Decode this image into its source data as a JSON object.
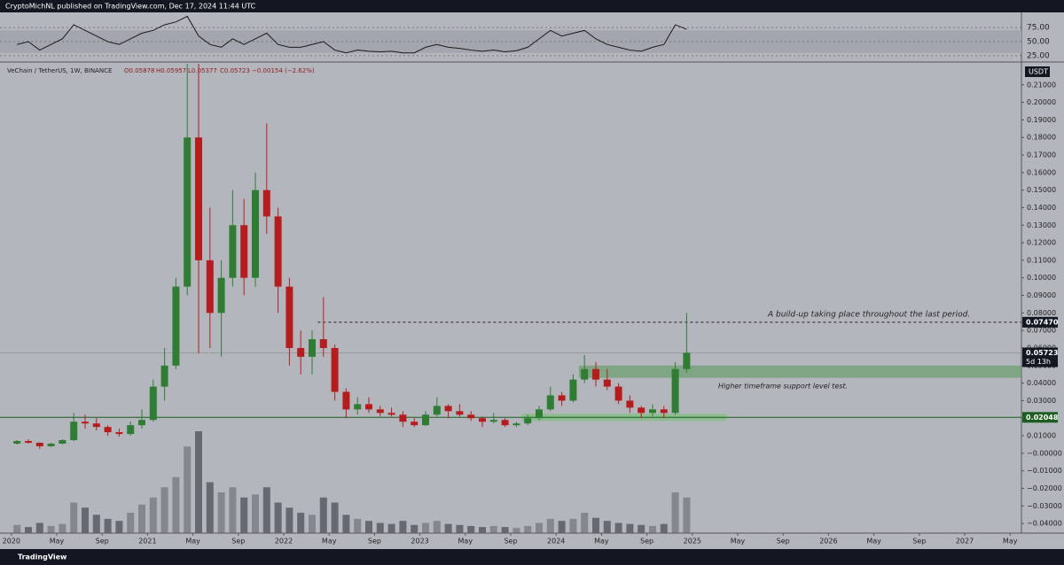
{
  "header": {
    "publisher": "CryptoMichNL published on TradingView.com, Dec 17, 2024 11:44 UTC",
    "footer": "TradingView"
  },
  "chart_data": {
    "type": "candlestick",
    "symbol": "VeChain / TetherUS, 1W, BINANCE",
    "ohlc_legend": [
      "O0.05878",
      "H0.05957",
      "L0.05377",
      "C0.05723",
      "−0.00154 (−2.62%)"
    ],
    "currency": "USDT",
    "up_color": "#2e7d32",
    "down_color": "#b71c1c",
    "volume_color": "#5d6068",
    "x": [
      "2020-01",
      "2020-02",
      "2020-03",
      "2020-04",
      "2020-05",
      "2020-06",
      "2020-07",
      "2020-08",
      "2020-09",
      "2020-10",
      "2020-11",
      "2020-12",
      "2021-01",
      "2021-02",
      "2021-03",
      "2021-04",
      "2021-05",
      "2021-06",
      "2021-07",
      "2021-08",
      "2021-09",
      "2021-10",
      "2021-11",
      "2021-12",
      "2022-01",
      "2022-02",
      "2022-03",
      "2022-04",
      "2022-05",
      "2022-06",
      "2022-07",
      "2022-08",
      "2022-09",
      "2022-10",
      "2022-11",
      "2022-12",
      "2023-01",
      "2023-02",
      "2023-03",
      "2023-04",
      "2023-05",
      "2023-06",
      "2023-07",
      "2023-08",
      "2023-09",
      "2023-10",
      "2023-11",
      "2023-12",
      "2024-01",
      "2024-02",
      "2024-03",
      "2024-04",
      "2024-05",
      "2024-06",
      "2024-07",
      "2024-08",
      "2024-09",
      "2024-10",
      "2024-11",
      "2024-12"
    ],
    "open": [
      0.0055,
      0.007,
      0.006,
      0.004,
      0.0055,
      0.0075,
      0.018,
      0.017,
      0.015,
      0.012,
      0.011,
      0.016,
      0.019,
      0.038,
      0.05,
      0.095,
      0.18,
      0.11,
      0.08,
      0.1,
      0.13,
      0.1,
      0.15,
      0.135,
      0.095,
      0.06,
      0.055,
      0.065,
      0.06,
      0.035,
      0.025,
      0.028,
      0.025,
      0.023,
      0.022,
      0.018,
      0.016,
      0.022,
      0.027,
      0.024,
      0.022,
      0.02,
      0.018,
      0.019,
      0.016,
      0.017,
      0.02,
      0.025,
      0.033,
      0.03,
      0.042,
      0.048,
      0.042,
      0.038,
      0.03,
      0.026,
      0.023,
      0.025,
      0.023,
      0.048
    ],
    "high": [
      0.0075,
      0.008,
      0.0062,
      0.006,
      0.008,
      0.023,
      0.022,
      0.02,
      0.016,
      0.014,
      0.018,
      0.025,
      0.042,
      0.06,
      0.1,
      0.28,
      0.25,
      0.14,
      0.11,
      0.15,
      0.145,
      0.16,
      0.188,
      0.14,
      0.1,
      0.07,
      0.07,
      0.089,
      0.062,
      0.037,
      0.032,
      0.032,
      0.027,
      0.026,
      0.024,
      0.02,
      0.024,
      0.032,
      0.028,
      0.028,
      0.024,
      0.021,
      0.023,
      0.02,
      0.018,
      0.022,
      0.027,
      0.038,
      0.035,
      0.045,
      0.056,
      0.052,
      0.048,
      0.04,
      0.033,
      0.027,
      0.028,
      0.027,
      0.052,
      0.08
    ],
    "low": [
      0.005,
      0.0055,
      0.0025,
      0.0036,
      0.005,
      0.007,
      0.014,
      0.013,
      0.01,
      0.0095,
      0.01,
      0.014,
      0.018,
      0.03,
      0.048,
      0.09,
      0.057,
      0.06,
      0.055,
      0.095,
      0.09,
      0.095,
      0.125,
      0.08,
      0.05,
      0.045,
      0.045,
      0.055,
      0.03,
      0.02,
      0.022,
      0.023,
      0.021,
      0.021,
      0.015,
      0.015,
      0.0155,
      0.021,
      0.02,
      0.021,
      0.0185,
      0.015,
      0.017,
      0.015,
      0.015,
      0.016,
      0.019,
      0.024,
      0.027,
      0.029,
      0.04,
      0.038,
      0.036,
      0.028,
      0.023,
      0.02,
      0.021,
      0.02,
      0.022,
      0.046
    ],
    "close": [
      0.007,
      0.006,
      0.004,
      0.0055,
      0.0075,
      0.018,
      0.017,
      0.015,
      0.012,
      0.011,
      0.016,
      0.019,
      0.038,
      0.05,
      0.095,
      0.18,
      0.11,
      0.08,
      0.1,
      0.13,
      0.1,
      0.15,
      0.135,
      0.095,
      0.06,
      0.055,
      0.065,
      0.06,
      0.035,
      0.025,
      0.028,
      0.025,
      0.023,
      0.022,
      0.018,
      0.016,
      0.022,
      0.027,
      0.024,
      0.022,
      0.02,
      0.018,
      0.019,
      0.016,
      0.017,
      0.02,
      0.025,
      0.033,
      0.03,
      0.042,
      0.048,
      0.042,
      0.038,
      0.03,
      0.026,
      0.023,
      0.025,
      0.023,
      0.048,
      0.05723
    ],
    "volume": [
      8,
      6,
      10,
      7,
      9,
      30,
      25,
      18,
      14,
      12,
      20,
      28,
      35,
      45,
      55,
      85,
      100,
      50,
      40,
      45,
      35,
      38,
      45,
      30,
      25,
      20,
      18,
      35,
      30,
      18,
      14,
      12,
      10,
      9,
      12,
      8,
      10,
      12,
      9,
      8,
      7,
      6,
      7,
      6,
      5,
      7,
      10,
      14,
      12,
      14,
      20,
      15,
      12,
      10,
      9,
      8,
      7,
      9,
      40,
      35
    ],
    "rsi": [
      45,
      50,
      35,
      45,
      55,
      80,
      70,
      60,
      50,
      45,
      55,
      65,
      70,
      80,
      85,
      95,
      60,
      45,
      40,
      55,
      45,
      55,
      65,
      45,
      40,
      40,
      45,
      50,
      35,
      30,
      35,
      33,
      32,
      33,
      30,
      30,
      40,
      45,
      40,
      38,
      35,
      33,
      35,
      32,
      34,
      40,
      55,
      70,
      60,
      65,
      70,
      55,
      45,
      40,
      35,
      33,
      40,
      45,
      80,
      72
    ],
    "rsi_color": "#1a1a1a",
    "rsi_band": [
      30,
      70
    ],
    "rsi_ylim": [
      17,
      102
    ],
    "rsi_yticks": [
      {
        "value": 75,
        "label": "75.00"
      },
      {
        "value": 50,
        "label": "50.00"
      },
      {
        "value": 25,
        "label": "25.00"
      }
    ],
    "xlim": [
      "2019-12",
      "2027-06"
    ],
    "xticks": [
      {
        "value": "2020-01",
        "label": "2020"
      },
      {
        "value": "2020-05",
        "label": "May"
      },
      {
        "value": "2020-09",
        "label": "Sep"
      },
      {
        "value": "2021-01",
        "label": "2021"
      },
      {
        "value": "2021-05",
        "label": "May"
      },
      {
        "value": "2021-09",
        "label": "Sep"
      },
      {
        "value": "2022-01",
        "label": "2022"
      },
      {
        "value": "2022-05",
        "label": "May"
      },
      {
        "value": "2022-09",
        "label": "Sep"
      },
      {
        "value": "2023-01",
        "label": "2023"
      },
      {
        "value": "2023-05",
        "label": "May"
      },
      {
        "value": "2023-09",
        "label": "Sep"
      },
      {
        "value": "2024-01",
        "label": "2024"
      },
      {
        "value": "2024-05",
        "label": "May"
      },
      {
        "value": "2024-09",
        "label": "Sep"
      },
      {
        "value": "2025-01",
        "label": "2025"
      },
      {
        "value": "2025-05",
        "label": "May"
      },
      {
        "value": "2025-09",
        "label": "Sep"
      },
      {
        "value": "2026-01",
        "label": "2026"
      },
      {
        "value": "2026-05",
        "label": "May"
      },
      {
        "value": "2026-09",
        "label": "Sep"
      },
      {
        "value": "2027-01",
        "label": "2027"
      },
      {
        "value": "2027-05",
        "label": "May"
      }
    ],
    "ylim": [
      -0.0455,
      0.222
    ],
    "yticks": [
      {
        "value": -0.04,
        "label": "−0.04000"
      },
      {
        "value": -0.03,
        "label": "−0.03000"
      },
      {
        "value": -0.02,
        "label": "−0.02000"
      },
      {
        "value": -0.01,
        "label": "−0.01000"
      },
      {
        "value": 0,
        "label": "−0.00000"
      },
      {
        "value": 0.01,
        "label": "0.01000"
      },
      {
        "value": 0.02,
        "label": "0.02000"
      },
      {
        "value": 0.03,
        "label": "0.03000"
      },
      {
        "value": 0.04,
        "label": "0.04000"
      },
      {
        "value": 0.05,
        "label": "0.05000"
      },
      {
        "value": 0.06,
        "label": "0.06000"
      },
      {
        "value": 0.07,
        "label": "0.07000"
      },
      {
        "value": 0.08,
        "label": "0.08000"
      },
      {
        "value": 0.09,
        "label": "0.09000"
      },
      {
        "value": 0.1,
        "label": "0.10000"
      },
      {
        "value": 0.11,
        "label": "0.11000"
      },
      {
        "value": 0.12,
        "label": "0.12000"
      },
      {
        "value": 0.13,
        "label": "0.13000"
      },
      {
        "value": 0.14,
        "label": "0.14000"
      },
      {
        "value": 0.15,
        "label": "0.15000"
      },
      {
        "value": 0.16,
        "label": "0.16000"
      },
      {
        "value": 0.17,
        "label": "0.17000"
      },
      {
        "value": 0.18,
        "label": "0.18000"
      },
      {
        "value": 0.19,
        "label": "0.19000"
      },
      {
        "value": 0.2,
        "label": "0.20000"
      },
      {
        "value": 0.21,
        "label": "0.21000"
      }
    ],
    "zones": [
      {
        "low": 0.043,
        "high": 0.05,
        "from": "2024-03",
        "to": "2027-06",
        "color": "#6e9f73"
      },
      {
        "low": 0.0185,
        "high": 0.0225,
        "from": "2023-10",
        "to": "2025-04",
        "color": "#7fbf7f"
      }
    ],
    "support_line": {
      "value": 0.02048,
      "label": "0.02048",
      "color": "#1b5e20"
    },
    "resistance_line": {
      "value": 0.0747,
      "label": "0.07470",
      "from": "2022-04"
    },
    "last_price": {
      "value": 0.05723,
      "label": "0.05723",
      "countdown": "5d 13h"
    },
    "annotations": [
      "A build-up taking place throughout the last period.",
      "Higher timeframe support level test."
    ]
  }
}
